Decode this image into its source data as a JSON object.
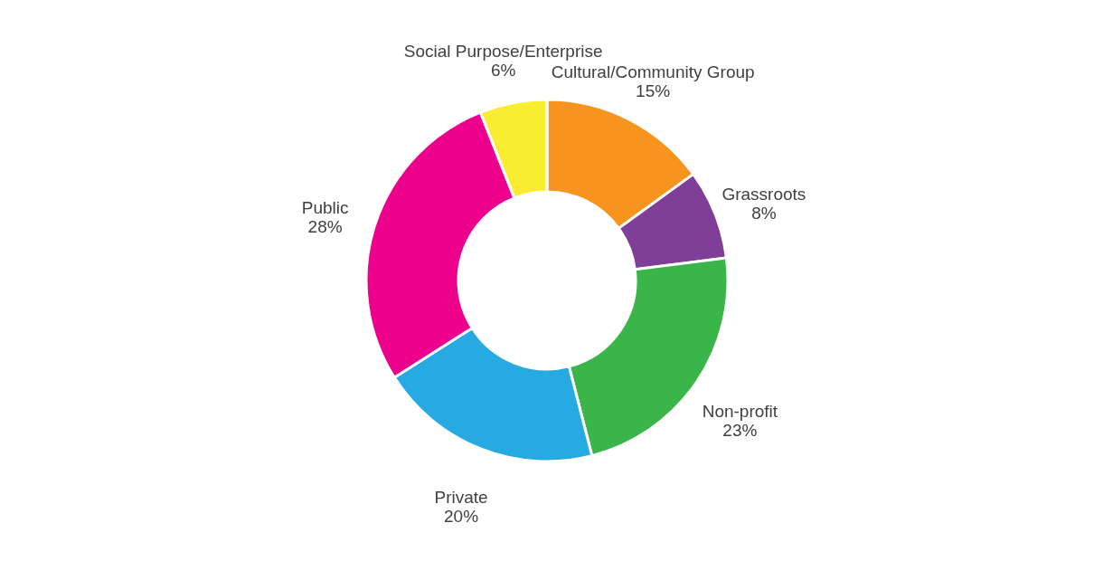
{
  "chart_data": {
    "type": "donut",
    "categories": [
      "Cultural/Community Group",
      "Grassroots",
      "Non-profit",
      "Private",
      "Public",
      "Social Purpose/Enterprise"
    ],
    "values": [
      15,
      8,
      23,
      20,
      28,
      6
    ],
    "colors": [
      "#f7941d",
      "#7f3f98",
      "#39b54a",
      "#27aae1",
      "#ec008c",
      "#f9ed32"
    ],
    "value_labels": [
      "15%",
      "8%",
      "23%",
      "20%",
      "28%",
      "6%"
    ],
    "legend": false
  }
}
